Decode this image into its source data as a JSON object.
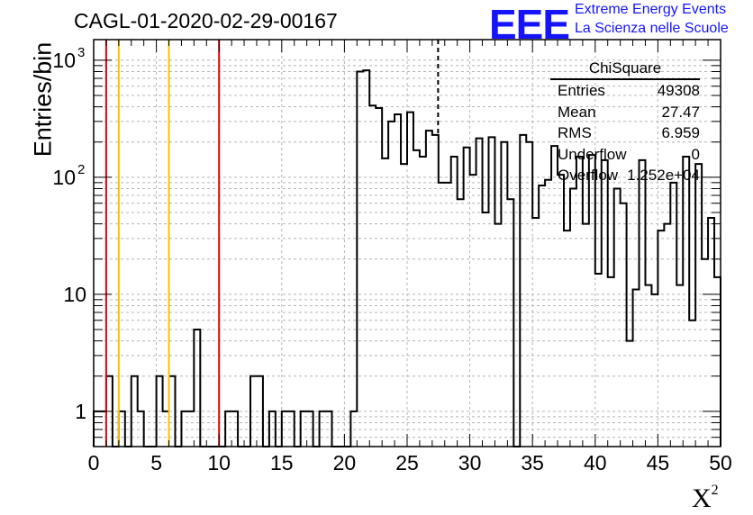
{
  "title": "CAGL-01-2020-02-29-00167",
  "logo": {
    "mark": "EEE",
    "line1": "Extreme Energy Events",
    "line2": "La Scienza nelle Scuole",
    "color": "#1414ff"
  },
  "stats": {
    "name": "ChiSquare",
    "rows": [
      {
        "key": "Entries",
        "value": "49308"
      },
      {
        "key": "Mean",
        "value": "27.47"
      },
      {
        "key": "RMS",
        "value": "6.959"
      },
      {
        "key": "Underflow",
        "value": "0"
      },
      {
        "key": "Overflow",
        "value": "1.252e+04"
      }
    ]
  },
  "axes": {
    "ylabel": "Entries/bin",
    "xlabel_base": "X",
    "xlabel_sup": "2",
    "x_ticks": [
      "0",
      "5",
      "10",
      "15",
      "20",
      "25",
      "30",
      "35",
      "40",
      "45",
      "50"
    ],
    "y_ticks": [
      {
        "value": 1,
        "label": "1"
      },
      {
        "value": 10,
        "label": "10"
      },
      {
        "value": 100,
        "base": "10",
        "exp": "2"
      },
      {
        "value": 1000,
        "base": "10",
        "exp": "3"
      }
    ]
  },
  "chart_data": {
    "type": "bar",
    "histogram_step": true,
    "bin_width": 0.5,
    "xlim": [
      0,
      50
    ],
    "ylim": [
      0.5,
      1500
    ],
    "y_scale": "log",
    "grid": true,
    "values": [
      1,
      1,
      2,
      0,
      1,
      0,
      2,
      1,
      0,
      0,
      2,
      1,
      2,
      0,
      1,
      1,
      5,
      0,
      0,
      0,
      0,
      1,
      1,
      0,
      0,
      2,
      2,
      0,
      1,
      0,
      1,
      1,
      0,
      1,
      1,
      0,
      1,
      1,
      0,
      0,
      0,
      1,
      800,
      820,
      410,
      390,
      145,
      300,
      345,
      130,
      360,
      170,
      150,
      250,
      230,
      90,
      90,
      150,
      65,
      180,
      105,
      215,
      50,
      220,
      40,
      200,
      65,
      0,
      230,
      200,
      45,
      85,
      95,
      185,
      105,
      35,
      80,
      150,
      40,
      155,
      15,
      140,
      14,
      80,
      60,
      4,
      11,
      140,
      12,
      10,
      35,
      40,
      90,
      12,
      150,
      6,
      130,
      20,
      45,
      14
    ],
    "markers": [
      {
        "x": 1,
        "color": "#e8000b",
        "style": "solid"
      },
      {
        "x": 2,
        "color": "#f5c400",
        "style": "solid"
      },
      {
        "x": 6,
        "color": "#f5c400",
        "style": "solid"
      },
      {
        "x": 10,
        "color": "#e8000b",
        "style": "solid"
      },
      {
        "x": 27.47,
        "color": "#000000",
        "style": "dashed"
      }
    ]
  }
}
